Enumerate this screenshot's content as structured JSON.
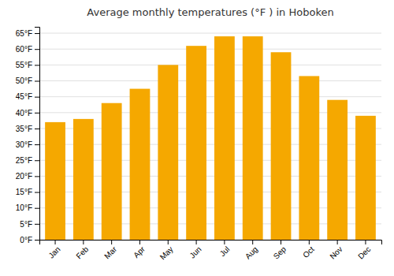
{
  "chart_data": {
    "type": "bar",
    "title": "Average monthly temperatures (°F ) in Hoboken",
    "categories": [
      "Jan",
      "Feb",
      "Mar",
      "Apr",
      "May",
      "Jun",
      "Jul",
      "Aug",
      "Sep",
      "Oct",
      "Nov",
      "Dec"
    ],
    "values": [
      37,
      38,
      43,
      47.5,
      55,
      61,
      64,
      64,
      59,
      51.5,
      44,
      39
    ],
    "color": "#F5A800",
    "ylim": [
      0,
      67
    ],
    "yticks": [
      {
        "value": 0,
        "label": "0°F"
      },
      {
        "value": 5,
        "label": "5°F"
      },
      {
        "value": 10,
        "label": "10°F"
      },
      {
        "value": 15,
        "label": "15°F"
      },
      {
        "value": 20,
        "label": "20°F"
      },
      {
        "value": 25,
        "label": "25°F"
      },
      {
        "value": 30,
        "label": "30°F"
      },
      {
        "value": 35,
        "label": "35°F"
      },
      {
        "value": 40,
        "label": "40°F"
      },
      {
        "value": 45,
        "label": "45°F"
      },
      {
        "value": 50,
        "label": "50°F"
      },
      {
        "value": 55,
        "label": "55°F"
      },
      {
        "value": 60,
        "label": "60°F"
      },
      {
        "value": 65,
        "label": "65°F"
      }
    ],
    "grid": true
  }
}
